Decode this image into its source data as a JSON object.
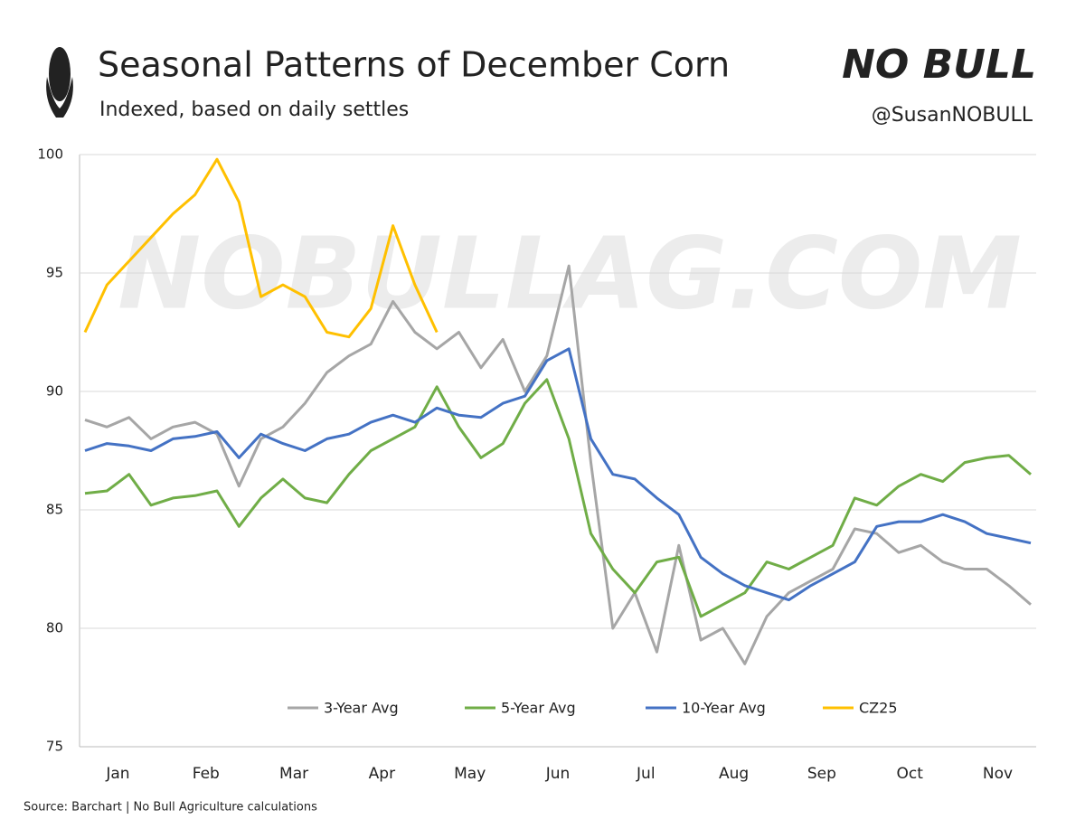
{
  "chart_data": {
    "type": "line",
    "title": "Seasonal Patterns of December Corn",
    "subtitle": "Indexed, based on daily settles",
    "logo": "NO BULL",
    "handle": "@SusanNOBULL",
    "watermark": "NOBULLAG.COM",
    "source": "Source: Barchart | No Bull Agriculture calculations",
    "categories": [
      null,
      "Jan",
      null,
      null,
      null,
      "Feb",
      null,
      null,
      null,
      "Mar",
      null,
      null,
      null,
      "Apr",
      null,
      null,
      null,
      "May",
      null,
      null,
      null,
      "Jun",
      null,
      null,
      null,
      "Jul",
      null,
      null,
      null,
      "Aug",
      null,
      null,
      null,
      "Sep",
      null,
      null,
      null,
      "Oct",
      null,
      null,
      null,
      "Nov",
      null,
      null
    ],
    "series": [
      {
        "name": "3-Year Avg",
        "color": "#a6a6a6",
        "values": [
          88.8,
          88.5,
          88.9,
          88.0,
          88.5,
          88.7,
          88.2,
          86.0,
          88.0,
          88.5,
          89.5,
          90.8,
          91.5,
          92.0,
          93.8,
          92.5,
          91.8,
          92.5,
          91.0,
          92.2,
          90.0,
          91.5,
          95.3,
          87.0,
          80.0,
          81.5,
          79.0,
          83.5,
          79.5,
          80.0,
          78.5,
          80.5,
          81.5,
          82.0,
          82.5,
          84.2,
          84.0,
          83.2,
          83.5,
          82.8,
          82.5,
          82.5,
          81.8,
          81.0
        ]
      },
      {
        "name": "5-Year Avg",
        "color": "#70ad47",
        "values": [
          85.7,
          85.8,
          86.5,
          85.2,
          85.5,
          85.6,
          85.8,
          84.3,
          85.5,
          86.3,
          85.5,
          85.3,
          86.5,
          87.5,
          88.0,
          88.5,
          90.2,
          88.5,
          87.2,
          87.8,
          89.5,
          90.5,
          88.0,
          84.0,
          82.5,
          81.5,
          82.8,
          83.0,
          80.5,
          81.0,
          81.5,
          82.8,
          82.5,
          83.0,
          83.5,
          85.5,
          85.2,
          86.0,
          86.5,
          86.2,
          87.0,
          87.2,
          87.3,
          86.5
        ]
      },
      {
        "name": "10-Year Avg",
        "color": "#4472c4",
        "values": [
          87.5,
          87.8,
          87.7,
          87.5,
          88.0,
          88.1,
          88.3,
          87.2,
          88.2,
          87.8,
          87.5,
          88.0,
          88.2,
          88.7,
          89.0,
          88.7,
          89.3,
          89.0,
          88.9,
          89.5,
          89.8,
          91.3,
          91.8,
          88.0,
          86.5,
          86.3,
          85.5,
          84.8,
          83.0,
          82.3,
          81.8,
          81.5,
          81.2,
          81.8,
          82.3,
          82.8,
          84.3,
          84.5,
          84.5,
          84.8,
          84.5,
          84.0,
          83.8,
          83.6
        ]
      },
      {
        "name": "CZ25",
        "color": "#ffc000",
        "values": [
          92.5,
          94.5,
          95.5,
          96.5,
          97.5,
          98.3,
          99.8,
          98.0,
          94.0,
          94.5,
          94.0,
          92.5,
          92.3,
          93.5,
          97.0,
          94.5,
          92.5,
          null,
          null,
          null,
          null,
          null,
          null,
          null,
          null,
          null,
          null,
          null,
          null,
          null,
          null,
          null,
          null,
          null,
          null,
          null,
          null,
          null,
          null,
          null,
          null,
          null,
          null,
          null
        ]
      }
    ],
    "ylim": [
      75,
      100
    ],
    "yticks": [
      75,
      80,
      85,
      90,
      95,
      100
    ],
    "grid": true
  }
}
